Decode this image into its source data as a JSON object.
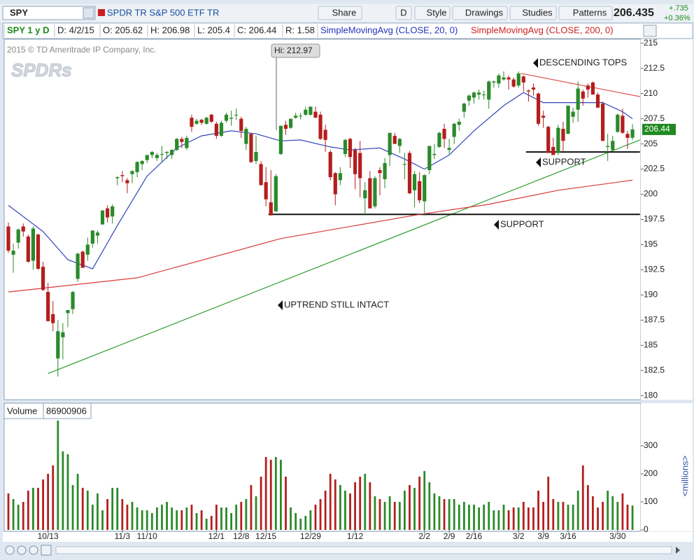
{
  "chart_data": {
    "type": "candlestick",
    "symbol": "SPY",
    "description": "SPDR TR S&P 500 ETF TR",
    "toolbar": [
      "Share",
      "D",
      "Style",
      "Drawings",
      "Studies",
      "Patterns"
    ],
    "last_price": 206.435,
    "change": "+.735",
    "change_pct": "+0.36%",
    "info": [
      "SPY 1 y D",
      "D: 4/2/15",
      "O: 205.62",
      "H: 206.98",
      "L: 205.4",
      "C: 206.44",
      "R: 1.58"
    ],
    "copyright": "2015 © TD Ameritrade IP Company, Inc.",
    "logo": "SPDRs",
    "hi_label": "Hi: 212.97",
    "annotations": [
      "DESCENDING TOPS",
      "SUPPORT",
      "SUPPORT",
      "UPTREND STILL INTACT"
    ],
    "last_tag": {
      "value": 206.44,
      "label": "206.44"
    },
    "up_color": "#2a8a2a",
    "down_color": "#b41e1e",
    "categories": [
      null,
      null,
      null,
      null,
      null,
      null,
      null,
      null,
      "10/13",
      null,
      null,
      null,
      null,
      null,
      null,
      null,
      null,
      null,
      null,
      null,
      null,
      null,
      null,
      "11/3",
      null,
      null,
      null,
      null,
      "11/10",
      null,
      null,
      null,
      null,
      null,
      null,
      null,
      null,
      null,
      null,
      null,
      null,
      null,
      "12/1",
      null,
      null,
      null,
      null,
      "12/8",
      null,
      null,
      null,
      null,
      "12/15",
      null,
      null,
      null,
      null,
      null,
      null,
      null,
      null,
      "12/29",
      null,
      null,
      null,
      null,
      null,
      null,
      null,
      null,
      "1/12",
      null,
      null,
      null,
      null,
      null,
      null,
      null,
      null,
      null,
      null,
      null,
      null,
      null,
      "2/2",
      null,
      null,
      null,
      null,
      "2/9",
      null,
      null,
      null,
      null,
      "2/16",
      null,
      null,
      null,
      null,
      null,
      null,
      null,
      null,
      "3/2",
      null,
      null,
      null,
      null,
      "3/9",
      null,
      null,
      null,
      null,
      "3/16",
      null,
      null,
      null,
      null,
      null,
      null,
      null,
      null,
      null,
      "3/30",
      null,
      null,
      null
    ],
    "candles": [
      [
        196.8,
        197.2,
        194.2,
        194.4
      ],
      [
        194.0,
        195.1,
        192.2,
        194.4
      ],
      [
        195.2,
        196.6,
        194.6,
        196.5
      ],
      [
        196.8,
        197.1,
        195.8,
        196.3
      ],
      [
        195.8,
        196.0,
        193.2,
        193.3
      ],
      [
        193.4,
        196.8,
        192.5,
        196.6
      ],
      [
        196.0,
        196.1,
        192.5,
        192.6
      ],
      [
        192.8,
        193.3,
        190.4,
        190.5
      ],
      [
        190.3,
        191.2,
        187.4,
        187.4
      ],
      [
        188.1,
        189.4,
        186.4,
        187.2
      ],
      [
        183.7,
        187.5,
        181.9,
        186.4
      ],
      [
        185.8,
        187.2,
        183.6,
        186.3
      ],
      [
        188.2,
        188.5,
        186.8,
        188.5
      ],
      [
        188.6,
        190.4,
        188.1,
        190.3
      ],
      [
        191.6,
        194.2,
        191.3,
        194.1
      ],
      [
        194.3,
        194.4,
        192.7,
        192.7
      ],
      [
        194.0,
        195.7,
        193.4,
        195.0
      ],
      [
        195.1,
        196.4,
        194.7,
        196.4
      ],
      [
        195.9,
        196.4,
        195.1,
        196.2
      ],
      [
        197.0,
        198.4,
        197.0,
        198.4
      ],
      [
        198.6,
        198.9,
        197.2,
        197.7
      ],
      [
        197.8,
        199.0,
        197.1,
        198.8
      ],
      [
        201.6,
        201.8,
        200.9,
        201.7
      ],
      [
        201.9,
        202.3,
        201.2,
        201.8
      ],
      [
        201.4,
        201.6,
        200.1,
        201.1
      ],
      [
        202.0,
        202.4,
        201.1,
        202.3
      ],
      [
        202.2,
        203.3,
        201.7,
        203.2
      ],
      [
        203.0,
        203.4,
        202.4,
        203.3
      ],
      [
        203.4,
        203.9,
        203.1,
        203.9
      ],
      [
        203.9,
        204.3,
        203.6,
        204.2
      ],
      [
        203.6,
        204.1,
        203.3,
        203.9
      ],
      [
        204.0,
        204.8,
        203.2,
        204.0
      ],
      [
        204.1,
        204.3,
        203.5,
        204.2
      ],
      [
        203.9,
        204.5,
        203.5,
        204.4
      ],
      [
        204.4,
        205.6,
        204.3,
        205.5
      ],
      [
        205.5,
        205.7,
        204.6,
        205.2
      ],
      [
        204.6,
        205.8,
        204.4,
        205.6
      ],
      [
        207.6,
        207.9,
        206.2,
        206.7
      ],
      [
        207.0,
        207.5,
        206.9,
        207.3
      ],
      [
        207.4,
        207.5,
        206.9,
        207.1
      ],
      [
        207.0,
        207.7,
        206.9,
        207.6
      ],
      [
        207.9,
        208.0,
        207.1,
        207.2
      ],
      [
        207.0,
        207.2,
        205.5,
        205.8
      ],
      [
        205.8,
        207.3,
        205.7,
        207.1
      ],
      [
        207.3,
        208.1,
        207.1,
        207.9
      ],
      [
        207.5,
        208.3,
        206.8,
        207.6
      ],
      [
        207.9,
        208.5,
        207.4,
        207.9
      ],
      [
        207.5,
        207.7,
        205.6,
        206.3
      ],
      [
        205.0,
        206.7,
        204.4,
        206.5
      ],
      [
        206.0,
        206.1,
        203.1,
        203.2
      ],
      [
        203.3,
        205.8,
        203.0,
        204.2
      ],
      [
        203.0,
        203.3,
        200.9,
        200.9
      ],
      [
        201.2,
        202.7,
        198.8,
        199.5
      ],
      [
        199.2,
        202.4,
        197.9,
        197.9
      ],
      [
        198.3,
        202.0,
        198.3,
        201.8
      ],
      [
        204.0,
        206.8,
        203.9,
        206.8
      ],
      [
        206.9,
        207.3,
        205.9,
        206.5
      ],
      [
        206.6,
        207.5,
        206.5,
        207.5
      ],
      [
        207.6,
        208.1,
        207.5,
        207.8
      ],
      [
        207.8,
        208.1,
        207.4,
        207.8
      ],
      [
        207.9,
        208.7,
        207.8,
        208.4
      ],
      [
        207.9,
        208.7,
        207.8,
        208.7
      ],
      [
        208.2,
        208.7,
        207.6,
        207.6
      ],
      [
        207.9,
        208.2,
        205.4,
        205.5
      ],
      [
        206.4,
        206.9,
        204.2,
        205.4
      ],
      [
        204.2,
        204.4,
        201.4,
        201.7
      ],
      [
        202.1,
        202.2,
        198.9,
        200.0
      ],
      [
        201.4,
        202.7,
        200.9,
        202.1
      ],
      [
        204.0,
        205.5,
        203.7,
        205.4
      ],
      [
        205.5,
        205.6,
        202.6,
        203.7
      ],
      [
        204.4,
        204.6,
        200.5,
        202.0
      ],
      [
        204.1,
        205.3,
        199.7,
        201.6
      ],
      [
        199.6,
        201.2,
        197.9,
        200.4
      ],
      [
        201.6,
        202.3,
        198.6,
        198.6
      ],
      [
        198.8,
        201.8,
        198.6,
        201.6
      ],
      [
        202.4,
        202.7,
        199.9,
        202.1
      ],
      [
        201.5,
        203.6,
        200.6,
        203.1
      ],
      [
        203.9,
        206.1,
        202.8,
        206.1
      ],
      [
        205.8,
        206.1,
        205.0,
        205.0
      ],
      [
        204.8,
        205.6,
        204.1,
        205.5
      ],
      [
        203.0,
        204.1,
        201.5,
        203.0
      ],
      [
        204.1,
        204.3,
        200.0,
        200.1
      ],
      [
        200.4,
        202.3,
        198.7,
        202.0
      ],
      [
        201.3,
        202.2,
        199.1,
        199.4
      ],
      [
        199.3,
        202.0,
        197.9,
        201.9
      ],
      [
        202.4,
        204.8,
        202.0,
        204.8
      ],
      [
        203.9,
        205.0,
        203.5,
        204.0
      ],
      [
        204.7,
        206.2,
        204.6,
        206.1
      ],
      [
        206.5,
        207.0,
        204.6,
        205.5
      ],
      [
        204.4,
        205.5,
        204.0,
        204.6
      ],
      [
        205.7,
        207.1,
        205.0,
        207.0
      ],
      [
        206.9,
        207.5,
        206.3,
        207.2
      ],
      [
        208.2,
        209.1,
        207.6,
        209.0
      ],
      [
        209.3,
        209.9,
        208.8,
        209.8
      ],
      [
        209.6,
        210.2,
        209.0,
        210.1
      ],
      [
        209.9,
        210.4,
        209.4,
        210.1
      ],
      [
        209.9,
        210.3,
        209.4,
        209.9
      ],
      [
        209.4,
        211.3,
        208.5,
        211.2
      ],
      [
        211.1,
        211.3,
        210.6,
        211.2
      ],
      [
        211.0,
        212.0,
        210.6,
        211.8
      ],
      [
        211.4,
        212.2,
        211.3,
        211.6
      ],
      [
        211.6,
        211.8,
        210.4,
        211.4
      ],
      [
        211.4,
        211.6,
        210.6,
        210.7
      ],
      [
        210.8,
        212.2,
        210.6,
        212.0
      ],
      [
        211.7,
        211.8,
        210.2,
        211.1
      ],
      [
        210.3,
        210.4,
        209.2,
        210.2
      ],
      [
        210.6,
        211.0,
        209.8,
        210.4
      ],
      [
        210.0,
        210.1,
        206.8,
        207.0
      ],
      [
        207.8,
        208.3,
        206.6,
        207.6
      ],
      [
        206.7,
        206.8,
        204.1,
        204.1
      ],
      [
        204.7,
        205.6,
        203.9,
        203.9
      ],
      [
        204.1,
        206.9,
        203.9,
        206.6
      ],
      [
        206.5,
        207.2,
        204.1,
        205.3
      ],
      [
        206.0,
        208.8,
        206.0,
        208.8
      ],
      [
        207.7,
        208.6,
        207.1,
        208.2
      ],
      [
        208.4,
        211.2,
        207.2,
        210.5
      ],
      [
        210.2,
        210.4,
        208.8,
        209.5
      ],
      [
        210.8,
        211.0,
        209.6,
        210.4
      ],
      [
        211.1,
        211.2,
        209.9,
        209.9
      ],
      [
        209.9,
        210.1,
        208.6,
        208.6
      ],
      [
        209.0,
        209.2,
        205.3,
        205.3
      ],
      [
        204.7,
        206.0,
        203.3,
        204.8
      ],
      [
        204.4,
        205.8,
        204.3,
        205.3
      ],
      [
        206.2,
        208.0,
        206.1,
        207.9
      ],
      [
        207.8,
        208.5,
        206.0,
        206.1
      ],
      [
        206.0,
        206.3,
        204.5,
        205.6
      ],
      [
        205.62,
        206.98,
        205.4,
        206.44
      ]
    ],
    "series": [
      {
        "name": "SimpleMovingAvg (CLOSE, 20, 0)",
        "color": "#3344bb",
        "x": [
          0,
          7,
          12,
          17,
          22,
          28,
          34,
          39,
          45,
          50,
          55,
          59,
          65,
          69,
          75,
          80,
          84,
          89,
          94,
          100,
          104,
          108,
          114,
          120,
          124,
          126
        ],
        "values": [
          198.9,
          196.3,
          193.5,
          192.6,
          196.9,
          201.8,
          204.6,
          205.8,
          206.3,
          206.0,
          205.3,
          205.4,
          204.7,
          204.4,
          204.6,
          203.5,
          202.5,
          203.9,
          206.3,
          208.8,
          210.1,
          209.1,
          209.1,
          209.1,
          208.2,
          207.5
        ]
      },
      {
        "name": "SimpleMovingAvg (CLOSE, 200, 0)",
        "color": "#d83a3a",
        "x": [
          0,
          26,
          55,
          83,
          97,
          111,
          126
        ],
        "values": [
          190.3,
          191.7,
          195.6,
          198.0,
          199.0,
          200.4,
          201.4
        ]
      }
    ],
    "drawings": [
      {
        "color": "#2e9e2e",
        "x": [
          8,
          127.5
        ],
        "values": [
          182.2,
          205.4
        ]
      },
      {
        "color": "#e05555",
        "x": [
          103.5,
          127.5
        ],
        "values": [
          212.0,
          209.7
        ]
      },
      {
        "color": "#111111",
        "x": [
          52.5,
          127.5
        ],
        "values": [
          198.0,
          198.0
        ]
      },
      {
        "color": "#111111",
        "x": [
          104.5,
          127.5
        ],
        "values": [
          204.2,
          204.2
        ]
      }
    ],
    "ylim": [
      179.6,
      215.4
    ],
    "yticks": [
      215,
      212.5,
      210,
      207.5,
      205,
      202.5,
      200,
      197.5,
      195,
      192.5,
      190,
      187.5,
      185,
      182.5,
      180
    ],
    "volume": {
      "title": "Volume",
      "last": 86900906,
      "axis_label": "<millions>",
      "values": [
        130,
        110,
        90,
        100,
        140,
        150,
        150,
        180,
        200,
        230,
        390,
        280,
        270,
        160,
        200,
        150,
        140,
        90,
        130,
        70,
        110,
        150,
        150,
        110,
        90,
        100,
        80,
        70,
        70,
        60,
        80,
        90,
        100,
        80,
        70,
        70,
        80,
        90,
        60,
        70,
        40,
        50,
        90,
        80,
        80,
        60,
        90,
        100,
        110,
        160,
        120,
        190,
        260,
        250,
        260,
        250,
        190,
        80,
        60,
        40,
        50,
        70,
        90,
        110,
        140,
        200,
        180,
        160,
        140,
        130,
        170,
        190,
        200,
        170,
        120,
        110,
        100,
        120,
        100,
        100,
        140,
        160,
        150,
        190,
        210,
        170,
        130,
        120,
        110,
        110,
        110,
        90,
        100,
        90,
        90,
        80,
        90,
        100,
        70,
        70,
        90,
        70,
        80,
        80,
        100,
        80,
        80,
        140,
        100,
        190,
        110,
        100,
        100,
        90,
        90,
        140,
        230,
        160,
        120,
        80,
        100,
        140,
        120,
        100,
        130,
        90,
        86.9
      ],
      "ylim": [
        0,
        392
      ],
      "yticks": [
        0,
        100,
        200,
        300
      ]
    }
  }
}
